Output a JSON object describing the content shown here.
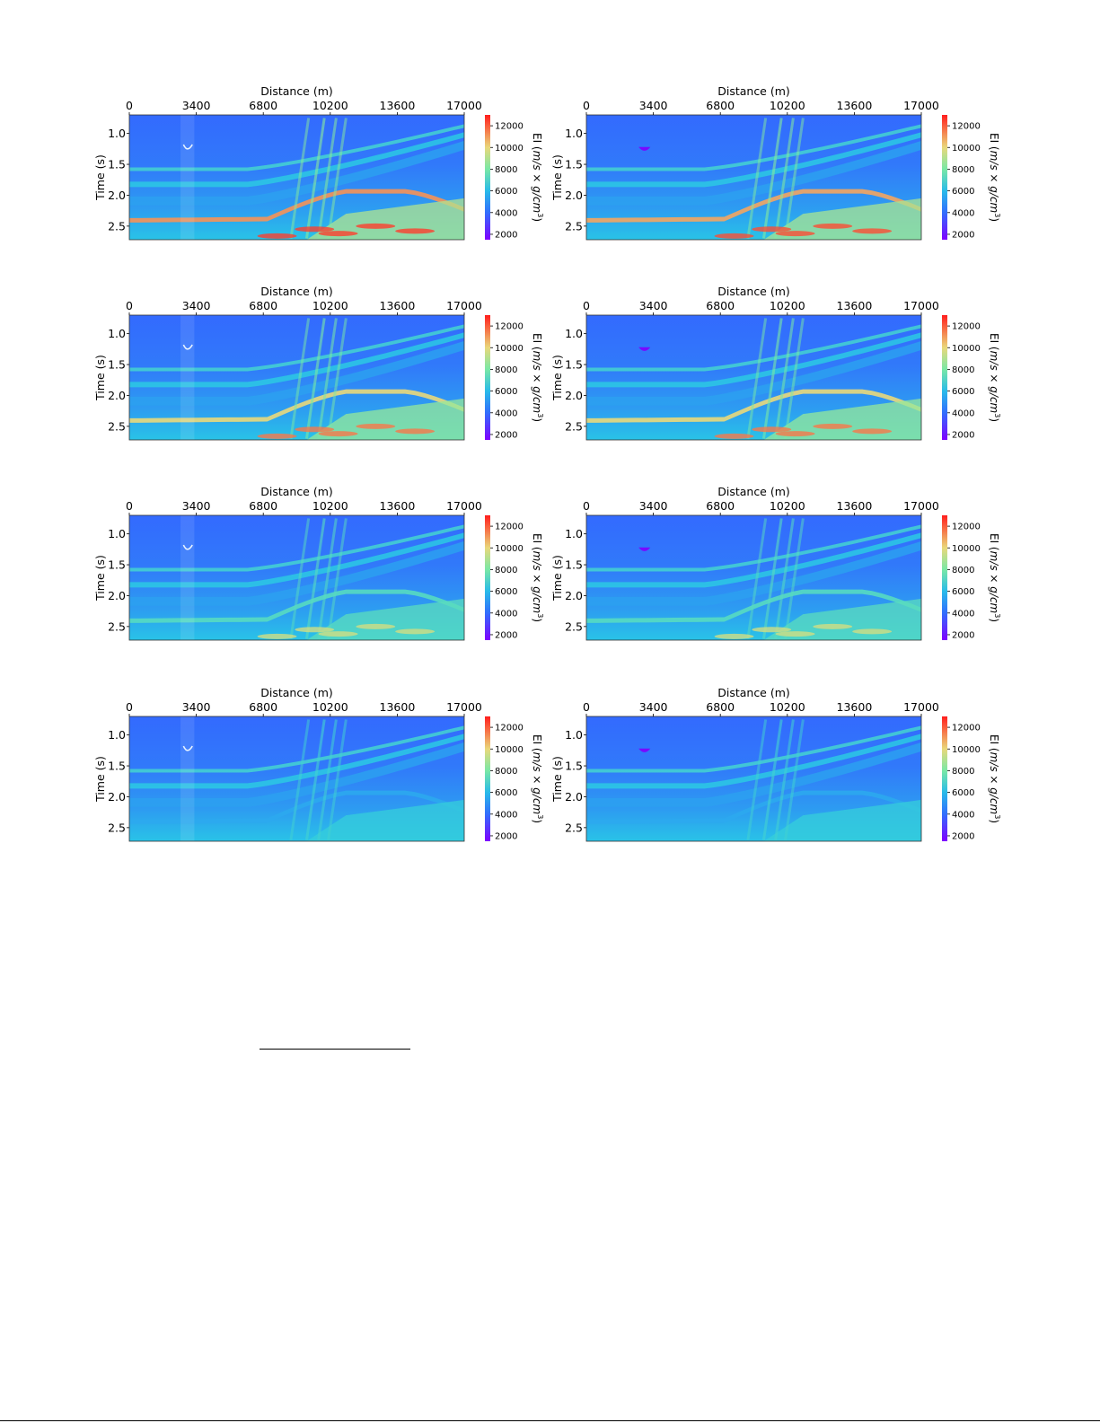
{
  "chart_data": {
    "type": "heatmap",
    "layout": "4 rows x 2 columns",
    "xlabel": "Distance (m)",
    "ylabel": "Time (s)",
    "x_ticks": [
      0,
      3400,
      6800,
      10200,
      13600,
      17000
    ],
    "x_tick_labels": [
      "0",
      "3400",
      "6800",
      "10200",
      "13600",
      "17000"
    ],
    "y_ticks": [
      1.0,
      1.5,
      2.0,
      2.5
    ],
    "y_tick_labels": [
      "1.0",
      "1.5",
      "2.0",
      "2.5"
    ],
    "xlim": [
      0,
      17000
    ],
    "ylim": [
      0.7,
      2.72
    ],
    "colorbar": {
      "label": "EI (m/s × g/cm³)",
      "label_base": "EI (",
      "label_math": "m/s × g/cm",
      "label_exp": "3",
      "label_close": ")",
      "ticks": [
        2000,
        4000,
        6000,
        8000,
        10000,
        12000
      ],
      "tick_labels": [
        "2000",
        "4000",
        "6000",
        "8000",
        "10000",
        "12000"
      ],
      "range": [
        1500,
        13000
      ],
      "colormap": "rainbow"
    },
    "panels": [
      {
        "row": 1,
        "col": 1,
        "deep_contrast": 1.0,
        "shallow_anomaly": "ring"
      },
      {
        "row": 1,
        "col": 2,
        "deep_contrast": 0.95,
        "shallow_anomaly": "lens"
      },
      {
        "row": 2,
        "col": 1,
        "deep_contrast": 0.8,
        "shallow_anomaly": "ring"
      },
      {
        "row": 2,
        "col": 2,
        "deep_contrast": 0.8,
        "shallow_anomaly": "lens"
      },
      {
        "row": 3,
        "col": 1,
        "deep_contrast": 0.35,
        "shallow_anomaly": "ring"
      },
      {
        "row": 3,
        "col": 2,
        "deep_contrast": 0.35,
        "shallow_anomaly": "lens"
      },
      {
        "row": 4,
        "col": 1,
        "deep_contrast": 0.05,
        "shallow_anomaly": "ring"
      },
      {
        "row": 4,
        "col": 2,
        "deep_contrast": 0.05,
        "shallow_anomaly": "lens"
      }
    ]
  }
}
